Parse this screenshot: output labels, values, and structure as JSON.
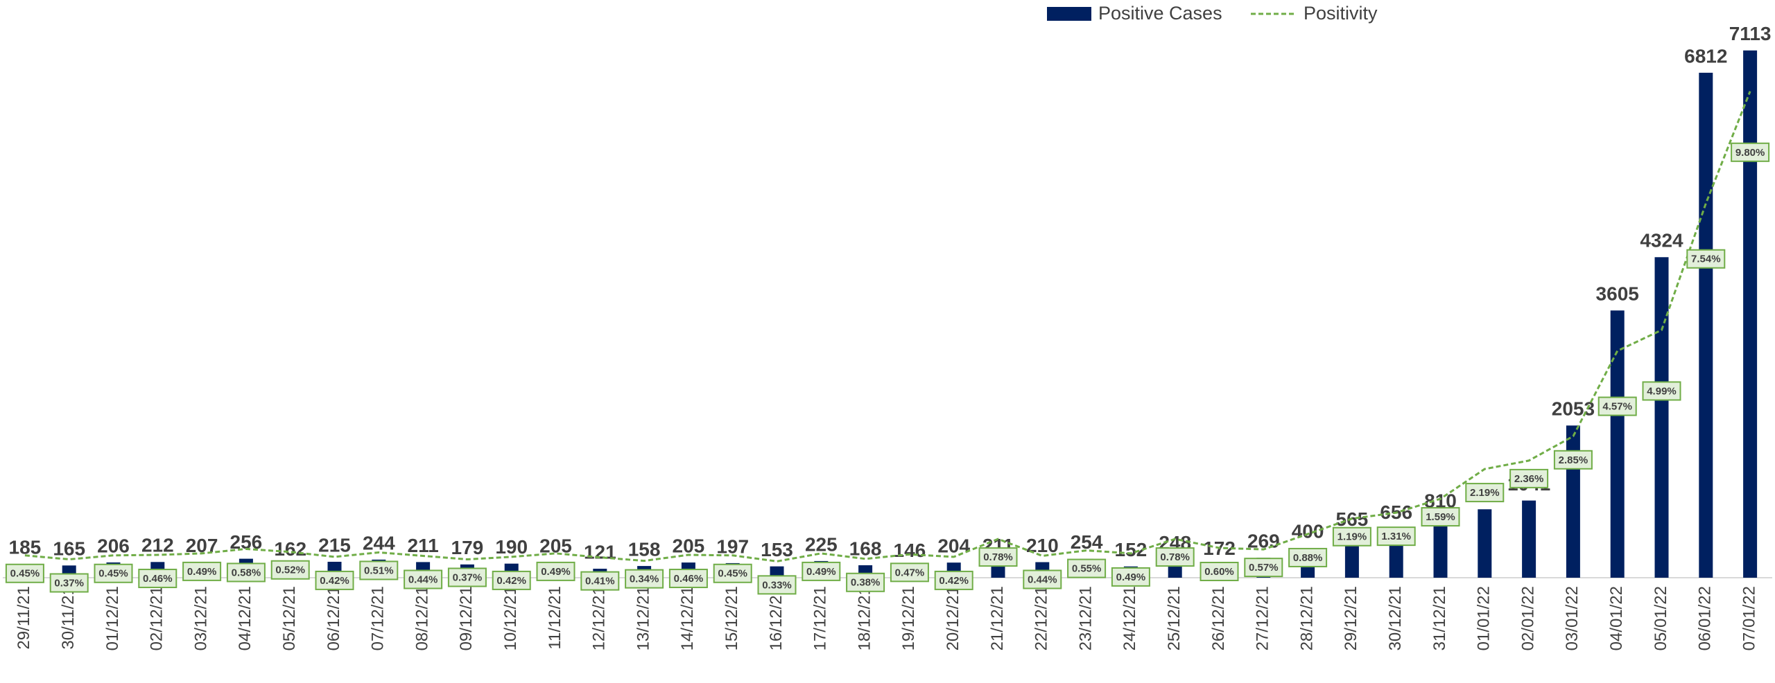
{
  "chart_data": {
    "type": "bar",
    "categories": [
      "29/11/21",
      "30/11/21",
      "01/12/21",
      "02/12/21",
      "03/12/21",
      "04/12/21",
      "05/12/21",
      "06/12/21",
      "07/12/21",
      "08/12/21",
      "09/12/21",
      "10/12/21",
      "11/12/21",
      "12/12/21",
      "13/12/21",
      "14/12/21",
      "15/12/21",
      "16/12/21",
      "17/12/21",
      "18/12/21",
      "19/12/21",
      "20/12/21",
      "21/12/21",
      "22/12/21",
      "23/12/21",
      "24/12/21",
      "25/12/21",
      "26/12/21",
      "27/12/21",
      "28/12/21",
      "29/12/21",
      "30/12/21",
      "31/12/21",
      "01/01/22",
      "02/01/22",
      "03/01/22",
      "04/01/22",
      "05/01/22",
      "06/01/22",
      "07/01/22"
    ],
    "series": [
      {
        "name": "Positive Cases",
        "type": "bar",
        "color": "#002060",
        "values": [
          185,
          165,
          206,
          212,
          207,
          256,
          162,
          215,
          244,
          211,
          179,
          190,
          205,
          121,
          158,
          205,
          197,
          153,
          225,
          168,
          146,
          204,
          211,
          210,
          254,
          152,
          248,
          172,
          269,
          400,
          565,
          656,
          810,
          923,
          1041,
          2053,
          3605,
          4324,
          6812,
          7113
        ]
      },
      {
        "name": "Positivity",
        "type": "line",
        "axis": "y2",
        "color": "#70ad47",
        "values": [
          0.45,
          0.37,
          0.45,
          0.46,
          0.49,
          0.58,
          0.52,
          0.42,
          0.51,
          0.44,
          0.37,
          0.42,
          0.49,
          0.41,
          0.34,
          0.46,
          0.45,
          0.33,
          0.49,
          0.38,
          0.47,
          0.42,
          0.78,
          0.44,
          0.55,
          0.49,
          0.78,
          0.6,
          0.57,
          0.88,
          1.19,
          1.31,
          1.59,
          2.19,
          2.36,
          2.85,
          4.57,
          4.99,
          7.54,
          9.8
        ],
        "value_labels": [
          "0.45%",
          "0.37%",
          "0.45%",
          "0.46%",
          "0.49%",
          "0.58%",
          "0.52%",
          "0.42%",
          "0.51%",
          "0.44%",
          "0.37%",
          "0.42%",
          "0.49%",
          "0.41%",
          "0.34%",
          "0.46%",
          "0.45%",
          "0.33%",
          "0.49%",
          "0.38%",
          "0.47%",
          "0.42%",
          "0.78%",
          "0.44%",
          "0.55%",
          "0.49%",
          "0.78%",
          "0.60%",
          "0.57%",
          "0.88%",
          "1.19%",
          "1.31%",
          "1.59%",
          "2.19%",
          "2.36%",
          "2.85%",
          "4.57%",
          "4.99%",
          "7.54%",
          "9.80%"
        ]
      }
    ],
    "ylim": [
      0,
      7700
    ],
    "y2lim": [
      0,
      11.5
    ],
    "legend": "top"
  }
}
